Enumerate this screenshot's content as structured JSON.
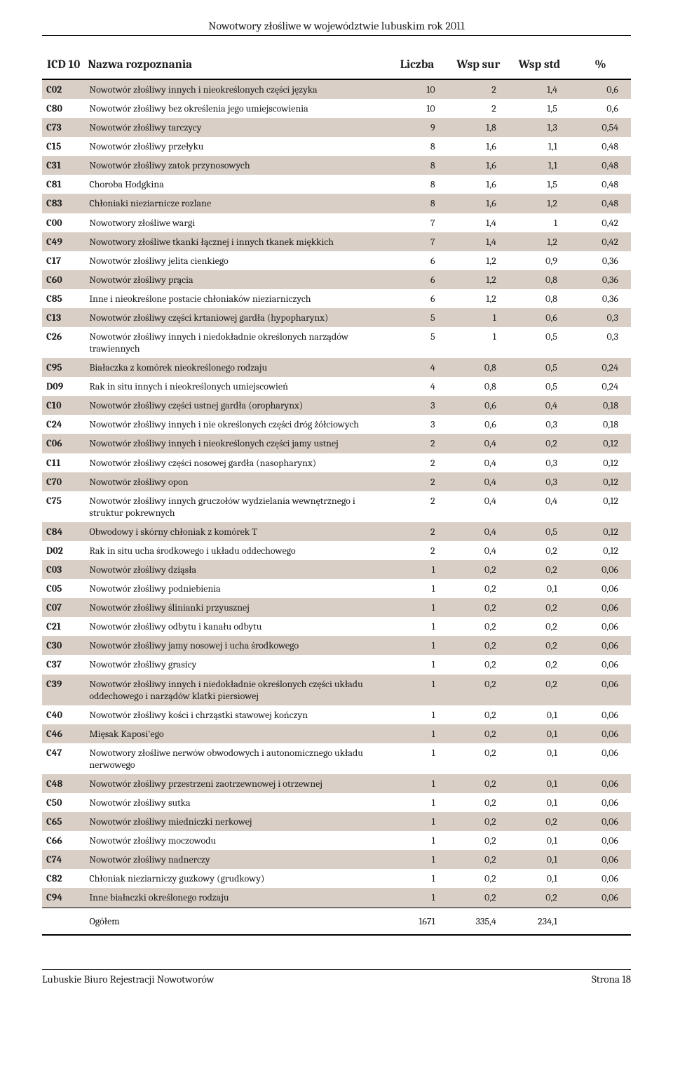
{
  "running_head": "Nowotwory złośliwe w województwie lubuskim rok 2011",
  "columns": {
    "icd": "ICD 10",
    "name": "Nazwa rozpoznania",
    "liczba": "Liczba",
    "wsp_sur": "Wsp sur",
    "wsp_std": "Wsp std",
    "pct": "%"
  },
  "colors": {
    "shade": "#d9cfc6",
    "rule": "#000000",
    "text": "#202020",
    "background": "#ffffff"
  },
  "typography": {
    "body_font": "Cambria / Georgia serif",
    "header_fontsize_pt": 13,
    "body_fontsize_pt": 10.5
  },
  "rows": [
    {
      "icd": "C02",
      "name": "Nowotwór złośliwy innych i nieokreślonych części języka",
      "liczba": "10",
      "wsp_sur": "2",
      "wsp_std": "1,4",
      "pct": "0,6",
      "shade": true
    },
    {
      "icd": "C80",
      "name": "Nowotwór złośliwy bez określenia jego umiejscowienia",
      "liczba": "10",
      "wsp_sur": "2",
      "wsp_std": "1,5",
      "pct": "0,6",
      "shade": false
    },
    {
      "icd": "C73",
      "name": "Nowotwór złośliwy tarczycy",
      "liczba": "9",
      "wsp_sur": "1,8",
      "wsp_std": "1,3",
      "pct": "0,54",
      "shade": true
    },
    {
      "icd": "C15",
      "name": "Nowotwór złośliwy przełyku",
      "liczba": "8",
      "wsp_sur": "1,6",
      "wsp_std": "1,1",
      "pct": "0,48",
      "shade": false
    },
    {
      "icd": "C31",
      "name": "Nowotwór złośliwy zatok przynosowych",
      "liczba": "8",
      "wsp_sur": "1,6",
      "wsp_std": "1,1",
      "pct": "0,48",
      "shade": true
    },
    {
      "icd": "C81",
      "name": "Choroba Hodgkina",
      "liczba": "8",
      "wsp_sur": "1,6",
      "wsp_std": "1,5",
      "pct": "0,48",
      "shade": false
    },
    {
      "icd": "C83",
      "name": "Chłoniaki nieziarnicze rozlane",
      "liczba": "8",
      "wsp_sur": "1,6",
      "wsp_std": "1,2",
      "pct": "0,48",
      "shade": true
    },
    {
      "icd": "C00",
      "name": "Nowotwory złośliwe wargi",
      "liczba": "7",
      "wsp_sur": "1,4",
      "wsp_std": "1",
      "pct": "0,42",
      "shade": false
    },
    {
      "icd": "C49",
      "name": "Nowotwory złośliwe tkanki łącznej i innych tkanek miękkich",
      "liczba": "7",
      "wsp_sur": "1,4",
      "wsp_std": "1,2",
      "pct": "0,42",
      "shade": true
    },
    {
      "icd": "C17",
      "name": "Nowotwór złośliwy jelita cienkiego",
      "liczba": "6",
      "wsp_sur": "1,2",
      "wsp_std": "0,9",
      "pct": "0,36",
      "shade": false
    },
    {
      "icd": "C60",
      "name": "Nowotwór złośliwy prącia",
      "liczba": "6",
      "wsp_sur": "1,2",
      "wsp_std": "0,8",
      "pct": "0,36",
      "shade": true
    },
    {
      "icd": "C85",
      "name": "Inne i nieokreślone postacie chłoniaków nieziarniczych",
      "liczba": "6",
      "wsp_sur": "1,2",
      "wsp_std": "0,8",
      "pct": "0,36",
      "shade": false
    },
    {
      "icd": "C13",
      "name": "Nowotwór złośliwy części krtaniowej gardła (hypopharynx)",
      "liczba": "5",
      "wsp_sur": "1",
      "wsp_std": "0,6",
      "pct": "0,3",
      "shade": true
    },
    {
      "icd": "C26",
      "name": "Nowotwór złośliwy innych i niedokładnie określonych narządów trawiennych",
      "liczba": "5",
      "wsp_sur": "1",
      "wsp_std": "0,5",
      "pct": "0,3",
      "shade": false
    },
    {
      "icd": "C95",
      "name": "Białaczka z komórek nieokreślonego rodzaju",
      "liczba": "4",
      "wsp_sur": "0,8",
      "wsp_std": "0,5",
      "pct": "0,24",
      "shade": true
    },
    {
      "icd": "D09",
      "name": "Rak in situ innych i nieokreślonych umiejscowień",
      "liczba": "4",
      "wsp_sur": "0,8",
      "wsp_std": "0,5",
      "pct": "0,24",
      "shade": false
    },
    {
      "icd": "C10",
      "name": "Nowotwór złośliwy części ustnej gardła (oropharynx)",
      "liczba": "3",
      "wsp_sur": "0,6",
      "wsp_std": "0,4",
      "pct": "0,18",
      "shade": true
    },
    {
      "icd": "C24",
      "name": "Nowotwór złośliwy innych i nie określonych części dróg żółciowych",
      "liczba": "3",
      "wsp_sur": "0,6",
      "wsp_std": "0,3",
      "pct": "0,18",
      "shade": false
    },
    {
      "icd": "C06",
      "name": "Nowotwór złośliwy innych i nieokreślonych części jamy ustnej",
      "liczba": "2",
      "wsp_sur": "0,4",
      "wsp_std": "0,2",
      "pct": "0,12",
      "shade": true
    },
    {
      "icd": "C11",
      "name": "Nowotwór złośliwy części nosowej gardła (nasopharynx)",
      "liczba": "2",
      "wsp_sur": "0,4",
      "wsp_std": "0,3",
      "pct": "0,12",
      "shade": false
    },
    {
      "icd": "C70",
      "name": "Nowotwór złośliwy opon",
      "liczba": "2",
      "wsp_sur": "0,4",
      "wsp_std": "0,3",
      "pct": "0,12",
      "shade": true
    },
    {
      "icd": "C75",
      "name": "Nowotwór złośliwy innych gruczołów wydzielania wewnętrznego i struktur pokrewnych",
      "liczba": "2",
      "wsp_sur": "0,4",
      "wsp_std": "0,4",
      "pct": "0,12",
      "shade": false
    },
    {
      "icd": "C84",
      "name": "Obwodowy i skórny chłoniak z komórek T",
      "liczba": "2",
      "wsp_sur": "0,4",
      "wsp_std": "0,5",
      "pct": "0,12",
      "shade": true
    },
    {
      "icd": "D02",
      "name": "Rak in situ ucha środkowego i układu oddechowego",
      "liczba": "2",
      "wsp_sur": "0,4",
      "wsp_std": "0,2",
      "pct": "0,12",
      "shade": false
    },
    {
      "icd": "C03",
      "name": "Nowotwór złośliwy dziąsła",
      "liczba": "1",
      "wsp_sur": "0,2",
      "wsp_std": "0,2",
      "pct": "0,06",
      "shade": true
    },
    {
      "icd": "C05",
      "name": "Nowotwór złośliwy podniebienia",
      "liczba": "1",
      "wsp_sur": "0,2",
      "wsp_std": "0,1",
      "pct": "0,06",
      "shade": false
    },
    {
      "icd": "C07",
      "name": "Nowotwór złośliwy ślinianki przyusznej",
      "liczba": "1",
      "wsp_sur": "0,2",
      "wsp_std": "0,2",
      "pct": "0,06",
      "shade": true
    },
    {
      "icd": "C21",
      "name": "Nowotwór złośliwy odbytu i kanału odbytu",
      "liczba": "1",
      "wsp_sur": "0,2",
      "wsp_std": "0,2",
      "pct": "0,06",
      "shade": false
    },
    {
      "icd": "C30",
      "name": "Nowotwór złośliwy jamy nosowej i ucha środkowego",
      "liczba": "1",
      "wsp_sur": "0,2",
      "wsp_std": "0,2",
      "pct": "0,06",
      "shade": true
    },
    {
      "icd": "C37",
      "name": "Nowotwór złośliwy grasicy",
      "liczba": "1",
      "wsp_sur": "0,2",
      "wsp_std": "0,2",
      "pct": "0,06",
      "shade": false
    },
    {
      "icd": "C39",
      "name": "Nowotwór złośliwy innych i niedokładnie określonych części układu oddechowego i narządów klatki piersiowej",
      "liczba": "1",
      "wsp_sur": "0,2",
      "wsp_std": "0,2",
      "pct": "0,06",
      "shade": true
    },
    {
      "icd": "C40",
      "name": "Nowotwór złośliwy kości i chrząstki stawowej kończyn",
      "liczba": "1",
      "wsp_sur": "0,2",
      "wsp_std": "0,1",
      "pct": "0,06",
      "shade": false
    },
    {
      "icd": "C46",
      "name": "Mięsak Kaposi'ego",
      "liczba": "1",
      "wsp_sur": "0,2",
      "wsp_std": "0,1",
      "pct": "0,06",
      "shade": true
    },
    {
      "icd": "C47",
      "name": "Nowotwory złośliwe nerwów obwodowych i autonomicznego układu nerwowego",
      "liczba": "1",
      "wsp_sur": "0,2",
      "wsp_std": "0,1",
      "pct": "0,06",
      "shade": false
    },
    {
      "icd": "C48",
      "name": "Nowotwór złośliwy przestrzeni zaotrzewnowej i otrzewnej",
      "liczba": "1",
      "wsp_sur": "0,2",
      "wsp_std": "0,1",
      "pct": "0,06",
      "shade": true
    },
    {
      "icd": "C50",
      "name": "Nowotwór złośliwy sutka",
      "liczba": "1",
      "wsp_sur": "0,2",
      "wsp_std": "0,1",
      "pct": "0,06",
      "shade": false
    },
    {
      "icd": "C65",
      "name": "Nowotwór złośliwy miedniczki nerkowej",
      "liczba": "1",
      "wsp_sur": "0,2",
      "wsp_std": "0,2",
      "pct": "0,06",
      "shade": true
    },
    {
      "icd": "C66",
      "name": "Nowotwór złośliwy moczowodu",
      "liczba": "1",
      "wsp_sur": "0,2",
      "wsp_std": "0,1",
      "pct": "0,06",
      "shade": false
    },
    {
      "icd": "C74",
      "name": "Nowotwór złośliwy nadnerczy",
      "liczba": "1",
      "wsp_sur": "0,2",
      "wsp_std": "0,1",
      "pct": "0,06",
      "shade": true
    },
    {
      "icd": "C82",
      "name": "Chłoniak nieziarniczy guzkowy (grudkowy)",
      "liczba": "1",
      "wsp_sur": "0,2",
      "wsp_std": "0,1",
      "pct": "0,06",
      "shade": false
    },
    {
      "icd": "C94",
      "name": "Inne białaczki określonego rodzaju",
      "liczba": "1",
      "wsp_sur": "0,2",
      "wsp_std": "0,2",
      "pct": "0,06",
      "shade": true
    }
  ],
  "total": {
    "label": "Ogółem",
    "liczba": "1671",
    "wsp_sur": "335,4",
    "wsp_std": "234,1",
    "pct": ""
  },
  "footer": {
    "left": "Lubuskie Biuro Rejestracji Nowotworów",
    "right": "Strona 18"
  }
}
